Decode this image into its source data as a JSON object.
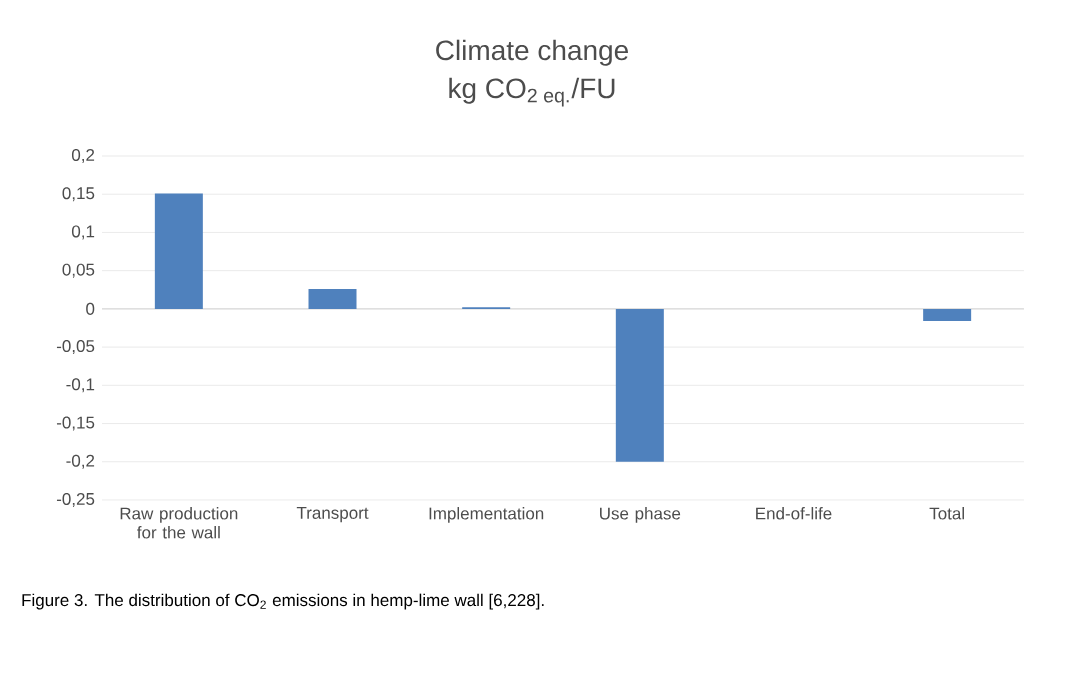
{
  "chart_data": {
    "type": "bar",
    "title": "Climate change",
    "subtitle": "kg CO$_{2 eq.}$/FU",
    "categories": [
      "Raw production for the wall",
      "Transport",
      "Implementation",
      "Use phase",
      "End-of-life",
      "Total"
    ],
    "values": [
      0.151,
      0.026,
      0.002,
      -0.2,
      0,
      -0.016
    ],
    "color": "#4f81bd",
    "ylim": [
      -0.25,
      0.2
    ],
    "yticks": [
      {
        "value": 0.2,
        "label": "0,2"
      },
      {
        "value": 0.15,
        "label": "0,15"
      },
      {
        "value": 0.1,
        "label": "0,1"
      },
      {
        "value": 0.05,
        "label": "0,05"
      },
      0,
      {
        "value": -0.05,
        "label": "-0,05"
      },
      {
        "value": -0.1,
        "label": "-0,1"
      },
      {
        "value": -0.15,
        "label": "-0,15"
      },
      {
        "value": -0.2,
        "label": "-0,2"
      },
      {
        "value": -0.25,
        "label": "-0,25"
      }
    ],
    "grid": "y",
    "annotations": [
      "Figure 3. The distribution of CO$_{2}$ emissions in hemp-lime wall [6,228]."
    ]
  }
}
